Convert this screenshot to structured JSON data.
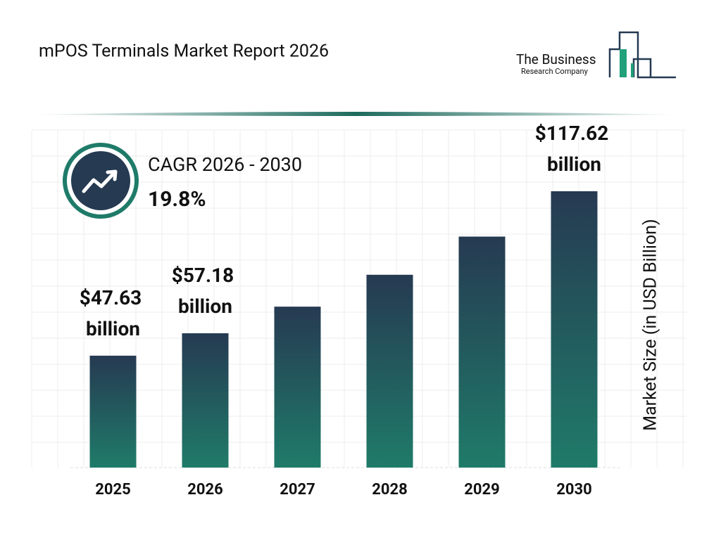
{
  "chart_data": {
    "type": "bar",
    "title": "mPOS Terminals Market Report 2026",
    "logo": {
      "line1": "The Business",
      "line2": "Research Company"
    },
    "cagr": {
      "label": "CAGR 2026 - 2030",
      "value": "19.8%"
    },
    "y_label": "Market Size (in USD Billion)",
    "categories": [
      "2025",
      "2026",
      "2027",
      "2028",
      "2029",
      "2030"
    ],
    "values": [
      47.63,
      57.18,
      68.5,
      82.07,
      98.32,
      117.62
    ],
    "value_labels": [
      "$47.63 billion",
      "$57.18 billion",
      null,
      null,
      null,
      "$117.62 billion"
    ],
    "colors": [
      "#263a52",
      "#1f7b69"
    ]
  }
}
